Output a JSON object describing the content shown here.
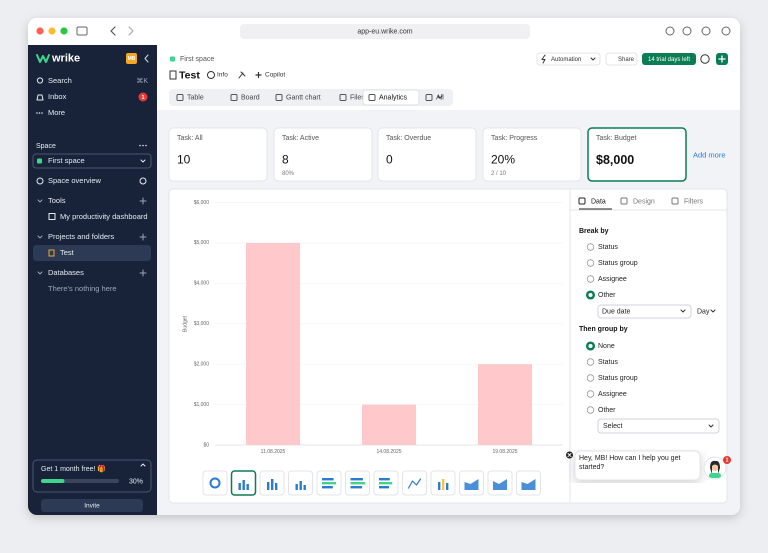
{
  "browser": {
    "url": "app-eu.wrike.com"
  },
  "sidebar": {
    "logo": "wrike",
    "avatar": "MB",
    "search": "Search",
    "search_shortcut": "⌘K",
    "inbox": "Inbox",
    "inbox_badge": 1,
    "more": "More",
    "space_label": "Space",
    "space_name": "First space",
    "space_overview": "Space overview",
    "tools": "Tools",
    "tools_items": [
      "My productivity dashboard"
    ],
    "projects": "Projects and folders",
    "projects_items": [
      "Test"
    ],
    "databases": "Databases",
    "databases_empty": "There's nothing here",
    "promo": {
      "title": "Get 1 month free! 🎁",
      "progress": 30,
      "progress_label": "30%"
    },
    "invite": "Invite"
  },
  "header": {
    "breadcrumb": "First space",
    "title": "Test",
    "info": "Info",
    "copilot": "Copilot",
    "automation": "Automation",
    "share": "Share",
    "trial": "14 trial days left"
  },
  "tabs": {
    "items": [
      "Table",
      "Board",
      "Gantt chart",
      "Files",
      "Analytics",
      "All"
    ],
    "active": 4
  },
  "kpis": {
    "cards": [
      {
        "label": "Task: All",
        "value": "10"
      },
      {
        "label": "Task: Active",
        "value": "8",
        "sub": "80%"
      },
      {
        "label": "Task: Overdue",
        "value": "0"
      },
      {
        "label": "Task: Progress",
        "value": "20%",
        "sub": "2 / 10"
      },
      {
        "label": "Task: Budget",
        "value": "$8,000"
      }
    ],
    "active": 4,
    "add_more": "Add more"
  },
  "chart_data": {
    "type": "bar",
    "y_label": "Budget",
    "categories": [
      "11.08.2025",
      "14.08.2025",
      "19.08.2025"
    ],
    "values": [
      5000,
      1000,
      2000
    ],
    "color": "#ffc9cc",
    "ylim": [
      0,
      6000
    ],
    "yticks": [
      {
        "value": 0,
        "label": "$0"
      },
      {
        "value": 1000,
        "label": "$1,000"
      },
      {
        "value": 2000,
        "label": "$2,000"
      },
      {
        "value": 3000,
        "label": "$3,000"
      },
      {
        "value": 4000,
        "label": "$4,000"
      },
      {
        "value": 5000,
        "label": "$5,000"
      },
      {
        "value": 6000,
        "label": "$6,000"
      }
    ],
    "grid": true
  },
  "panel": {
    "tabs": [
      "Data",
      "Design",
      "Filters"
    ],
    "active_tab": 0,
    "break_by": "Break by",
    "break_options": [
      "Status",
      "Status group",
      "Assignee",
      "Other"
    ],
    "break_selected": 3,
    "due_date": "Due date",
    "day": "Day",
    "group_by": "Then group by",
    "group_options": [
      "None",
      "Status",
      "Status group",
      "Assignee",
      "Other"
    ],
    "group_selected": 0,
    "select": "Select"
  },
  "chat": {
    "message": "Hey, MB! How can I help you get started?",
    "badge": 1
  }
}
